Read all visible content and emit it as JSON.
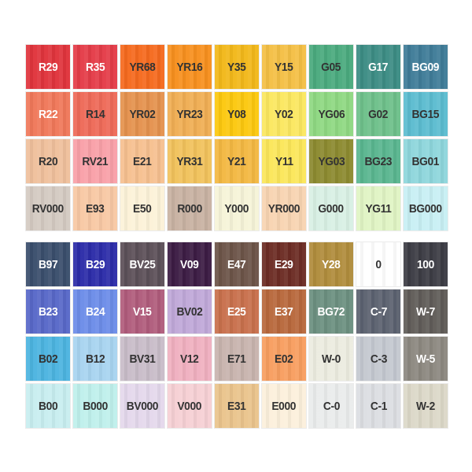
{
  "dark_text": "#333333",
  "light_text": "#ffffff",
  "blocks": [
    {
      "swatches": [
        {
          "code": "R29",
          "color": "#e0343c",
          "light": true
        },
        {
          "code": "R35",
          "color": "#e43c48",
          "light": true
        },
        {
          "code": "YR68",
          "color": "#f56a1e",
          "light": false
        },
        {
          "code": "YR16",
          "color": "#f7901e",
          "light": false
        },
        {
          "code": "Y35",
          "color": "#f2b81a",
          "light": false
        },
        {
          "code": "Y15",
          "color": "#f4bf45",
          "light": false
        },
        {
          "code": "G05",
          "color": "#4aaa7e",
          "light": false
        },
        {
          "code": "G17",
          "color": "#3c8c84",
          "light": true
        },
        {
          "code": "BG09",
          "color": "#3f7c98",
          "light": true
        },
        {
          "code": "R22",
          "color": "#f0785a",
          "light": true
        },
        {
          "code": "R14",
          "color": "#ee6a58",
          "light": false
        },
        {
          "code": "YR02",
          "color": "#e4924e",
          "light": false
        },
        {
          "code": "YR23",
          "color": "#f0ae54",
          "light": false
        },
        {
          "code": "Y08",
          "color": "#fcc80e",
          "light": false
        },
        {
          "code": "Y02",
          "color": "#fbe760",
          "light": false
        },
        {
          "code": "YG06",
          "color": "#8fd882",
          "light": false
        },
        {
          "code": "G02",
          "color": "#6ec08a",
          "light": false
        },
        {
          "code": "BG15",
          "color": "#5cbcd0",
          "light": false
        },
        {
          "code": "R20",
          "color": "#efc09c",
          "light": false
        },
        {
          "code": "RV21",
          "color": "#f9a0a8",
          "light": false
        },
        {
          "code": "E21",
          "color": "#f6c090",
          "light": false
        },
        {
          "code": "YR31",
          "color": "#f1c25c",
          "light": false
        },
        {
          "code": "Y21",
          "color": "#f3b842",
          "light": false
        },
        {
          "code": "Y11",
          "color": "#fbe65a",
          "light": false
        },
        {
          "code": "YG03",
          "color": "#8c8a30",
          "light": false
        },
        {
          "code": "BG23",
          "color": "#5ab690",
          "light": false
        },
        {
          "code": "BG01",
          "color": "#8ed6dc",
          "light": false
        },
        {
          "code": "RV000",
          "color": "#d4cac2",
          "light": false
        },
        {
          "code": "E93",
          "color": "#f8c8a4",
          "light": false
        },
        {
          "code": "E50",
          "color": "#fcf2d8",
          "light": false
        },
        {
          "code": "R000",
          "color": "#c8b2a2",
          "light": false
        },
        {
          "code": "Y000",
          "color": "#f6f4d8",
          "light": false
        },
        {
          "code": "YR000",
          "color": "#f8d4b2",
          "light": false
        },
        {
          "code": "G000",
          "color": "#d8f0e4",
          "light": false
        },
        {
          "code": "YG11",
          "color": "#e0f4c4",
          "light": false
        },
        {
          "code": "BG000",
          "color": "#c8eff4",
          "light": false
        }
      ]
    },
    {
      "swatches": [
        {
          "code": "B97",
          "color": "#3a4e6c",
          "light": true
        },
        {
          "code": "B29",
          "color": "#2c2ca8",
          "light": true
        },
        {
          "code": "BV25",
          "color": "#5c5058",
          "light": true
        },
        {
          "code": "V09",
          "color": "#3c1c44",
          "light": true
        },
        {
          "code": "E47",
          "color": "#6c5448",
          "light": true
        },
        {
          "code": "E29",
          "color": "#6c2c24",
          "light": true
        },
        {
          "code": "Y28",
          "color": "#b08c3c",
          "light": true
        },
        {
          "code": "0",
          "color": "#ffffff",
          "light": false
        },
        {
          "code": "100",
          "color": "#3c3c44",
          "light": true
        },
        {
          "code": "B23",
          "color": "#5868c8",
          "light": true
        },
        {
          "code": "B24",
          "color": "#6c8ce8",
          "light": true
        },
        {
          "code": "V15",
          "color": "#b05c7c",
          "light": true
        },
        {
          "code": "BV02",
          "color": "#c0a8d8",
          "light": false
        },
        {
          "code": "E25",
          "color": "#c8704c",
          "light": true
        },
        {
          "code": "E37",
          "color": "#b8683c",
          "light": true
        },
        {
          "code": "BG72",
          "color": "#6c9080",
          "light": true
        },
        {
          "code": "C-7",
          "color": "#5c6270",
          "light": true
        },
        {
          "code": "W-7",
          "color": "#605c58",
          "light": true
        },
        {
          "code": "B02",
          "color": "#4cb4e0",
          "light": false
        },
        {
          "code": "B12",
          "color": "#a8d4f0",
          "light": false
        },
        {
          "code": "BV31",
          "color": "#c8bcc8",
          "light": false
        },
        {
          "code": "V12",
          "color": "#f0b0c0",
          "light": false
        },
        {
          "code": "E71",
          "color": "#c8b4ae",
          "light": false
        },
        {
          "code": "E02",
          "color": "#f89e60",
          "light": false
        },
        {
          "code": "W-0",
          "color": "#ecece0",
          "light": false
        },
        {
          "code": "C-3",
          "color": "#c4c8d0",
          "light": false
        },
        {
          "code": "W-5",
          "color": "#8c8880",
          "light": true
        },
        {
          "code": "B00",
          "color": "#c8eef0",
          "light": false
        },
        {
          "code": "B000",
          "color": "#bff0ec",
          "light": false
        },
        {
          "code": "BV000",
          "color": "#e4d8ec",
          "light": false
        },
        {
          "code": "V000",
          "color": "#f6d0d4",
          "light": false
        },
        {
          "code": "E31",
          "color": "#eac48c",
          "light": false
        },
        {
          "code": "E000",
          "color": "#fcf0dc",
          "light": false
        },
        {
          "code": "C-0",
          "color": "#eaecec",
          "light": false
        },
        {
          "code": "C-1",
          "color": "#dcdee2",
          "light": false
        },
        {
          "code": "W-2",
          "color": "#dcd8c8",
          "light": false
        }
      ]
    }
  ]
}
